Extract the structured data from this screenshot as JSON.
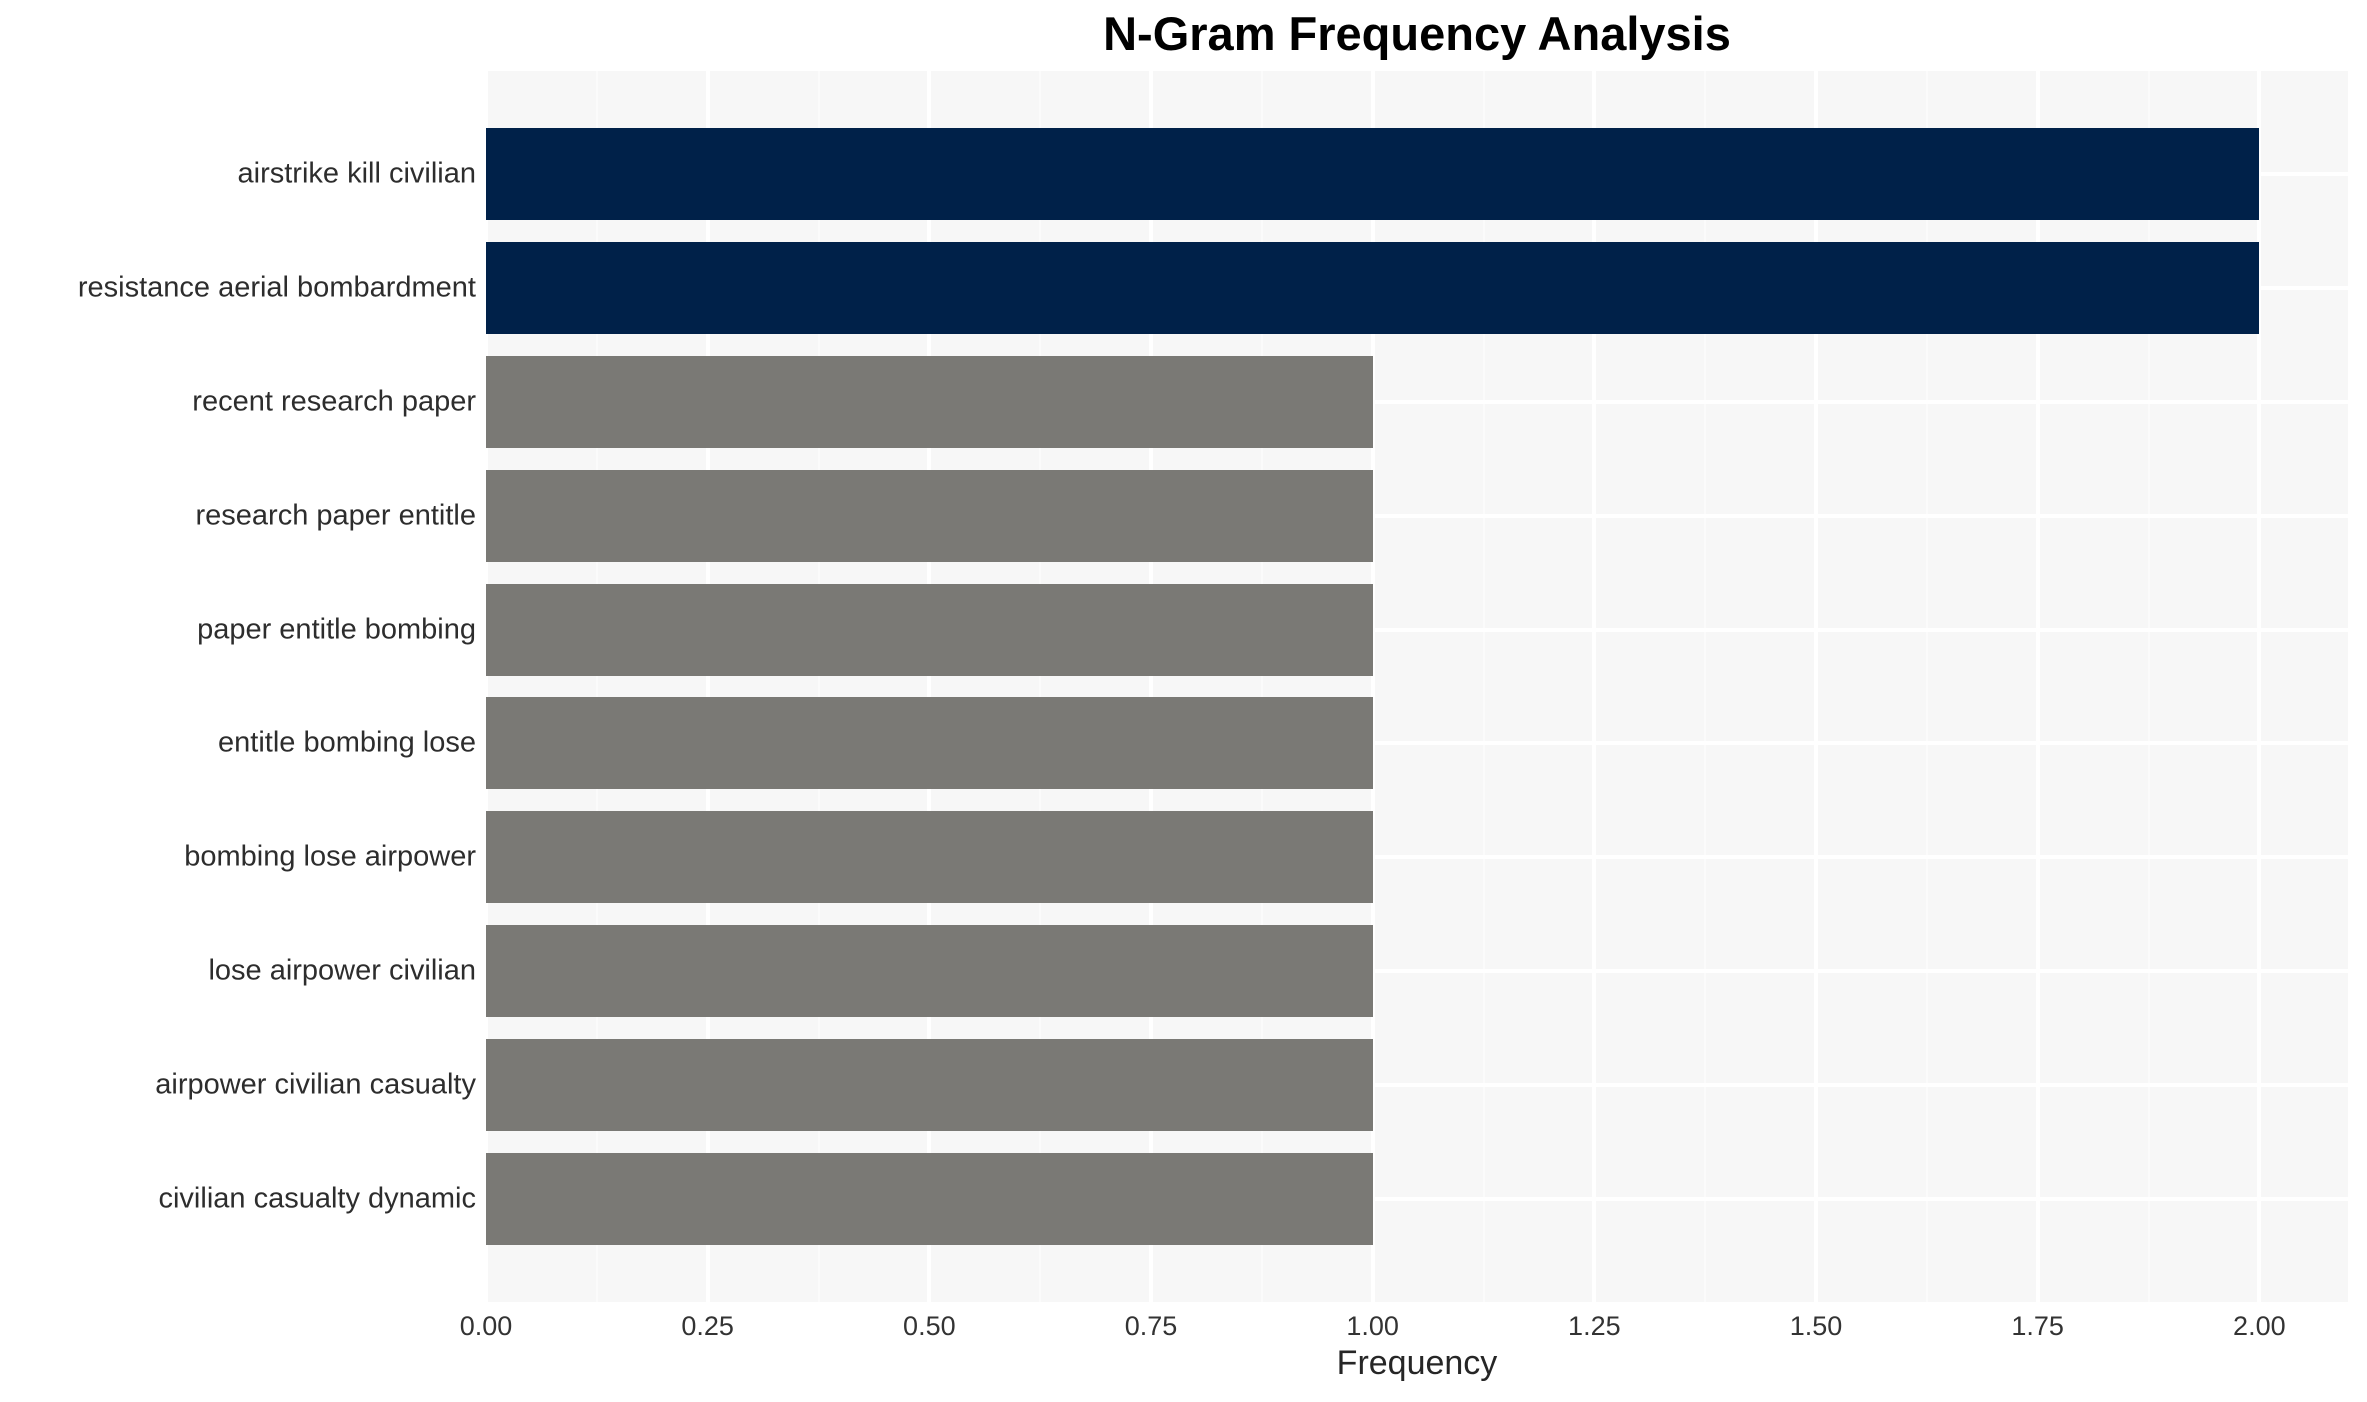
{
  "chart_data": {
    "type": "bar",
    "orientation": "horizontal",
    "title": "N-Gram Frequency Analysis",
    "xlabel": "Frequency",
    "ylabel": "",
    "legend": "none",
    "grid": "major white gridlines on light-gray panel",
    "categories": [
      "airstrike kill civilian",
      "resistance aerial bombardment",
      "recent research paper",
      "research paper entitle",
      "paper entitle bombing",
      "entitle bombing lose",
      "bombing lose airpower",
      "lose airpower civilian",
      "airpower civilian casualty",
      "civilian casualty dynamic"
    ],
    "values": [
      2,
      2,
      1,
      1,
      1,
      1,
      1,
      1,
      1,
      1
    ],
    "bar_colors": [
      "#002149",
      "#002149",
      "#7a7975",
      "#7a7975",
      "#7a7975",
      "#7a7975",
      "#7a7975",
      "#7a7975",
      "#7a7975",
      "#7a7975"
    ],
    "xlim": [
      0,
      2.1
    ],
    "xtick_values": [
      0,
      0.25,
      0.5,
      0.75,
      1.0,
      1.25,
      1.5,
      1.75,
      2.0
    ],
    "xtick_labels": [
      "0.00",
      "0.25",
      "0.50",
      "0.75",
      "1.00",
      "1.25",
      "1.50",
      "1.75",
      "2.00"
    ],
    "colors": {
      "highlight_bar": "#002149",
      "default_bar": "#7a7975",
      "plot_background": "#f7f7f7",
      "gridline": "#ffffff",
      "title_text": "#000000",
      "axis_text": "#333333"
    }
  }
}
